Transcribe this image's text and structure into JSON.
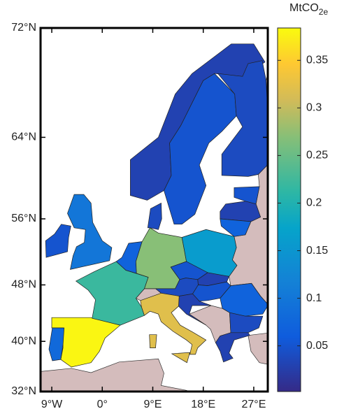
{
  "chart_data": {
    "type": "map",
    "projection": "mercator",
    "xlim": [
      -11,
      29.5
    ],
    "ylim": [
      32,
      72
    ],
    "xticks": [
      {
        "value": -9,
        "label": "9°W"
      },
      {
        "value": 0,
        "label": "0°"
      },
      {
        "value": 9,
        "label": "9°E"
      },
      {
        "value": 18,
        "label": "18°E"
      },
      {
        "value": 27,
        "label": "27°E"
      }
    ],
    "yticks": [
      {
        "value": 72,
        "label": "72°N"
      },
      {
        "value": 64,
        "label": "64°N"
      },
      {
        "value": 56,
        "label": "56°N"
      },
      {
        "value": 48,
        "label": "48°N"
      },
      {
        "value": 40,
        "label": "40°N"
      },
      {
        "value": 32,
        "label": "32°N"
      }
    ],
    "colorbar": {
      "label": "MtCO",
      "label_subscript": "2e",
      "colormap": "parula",
      "clim": [
        0.002,
        0.384
      ],
      "ticks": [
        0.05,
        0.1,
        0.15,
        0.2,
        0.25,
        0.3,
        0.35
      ]
    },
    "values": [
      0.38,
      0.08,
      0.22,
      0.07,
      0.27,
      0.04,
      0.16,
      0.05,
      0.03,
      0.04,
      0.05,
      0.03,
      0.32,
      0.07,
      0.04,
      0.03,
      0.1,
      0.05,
      0.03,
      0.05,
      0.04,
      0.05,
      0.03,
      0.07
    ]
  }
}
